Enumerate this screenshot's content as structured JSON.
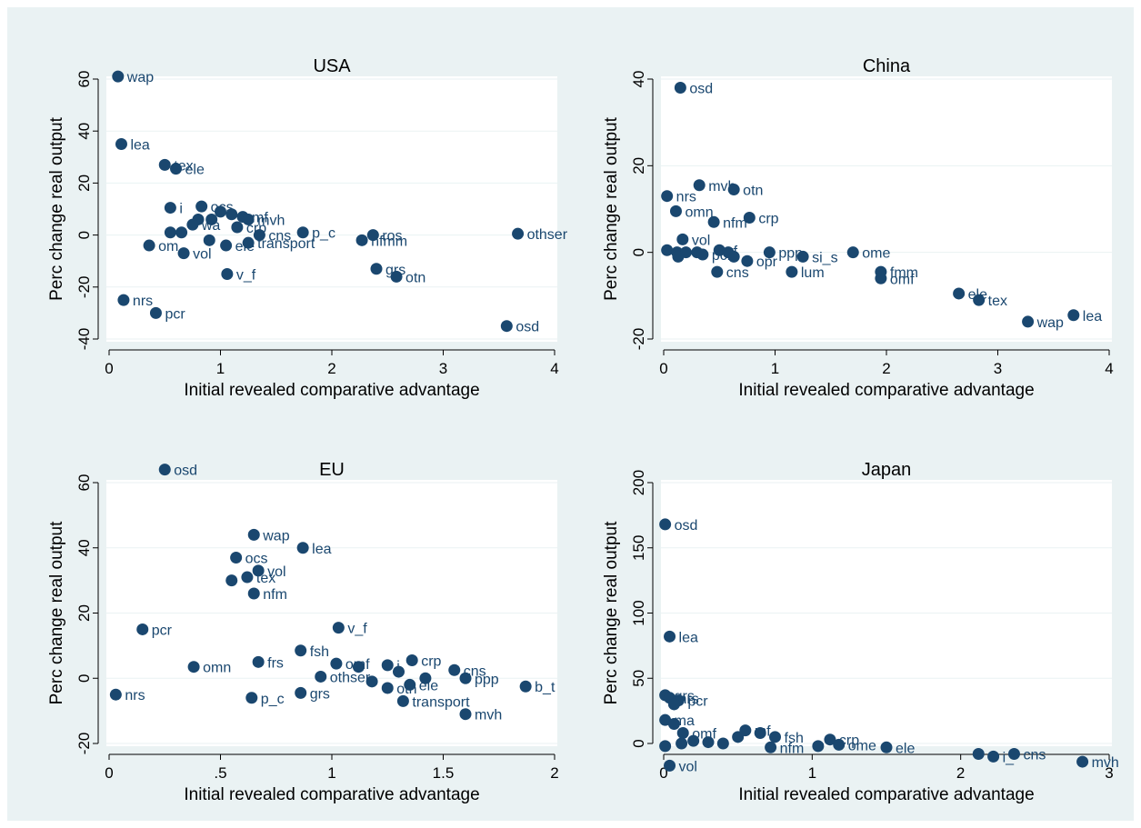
{
  "chart_data": [
    {
      "type": "scatter",
      "title": "USA",
      "xlabel": "Initial revealed comparative advantage",
      "ylabel": "Perc change real output",
      "xlim": [
        0,
        4
      ],
      "ylim": [
        -40,
        60
      ],
      "xticks": [
        "0",
        "1",
        "2",
        "3",
        "4"
      ],
      "yticks": [
        "-40",
        "-20",
        "0",
        "20",
        "40",
        "60"
      ],
      "points": [
        {
          "x": 0.08,
          "y": 61,
          "label": "wap"
        },
        {
          "x": 0.11,
          "y": 35,
          "label": "lea"
        },
        {
          "x": 0.5,
          "y": 27,
          "label": "tex"
        },
        {
          "x": 0.6,
          "y": 25.5,
          "label": "ele"
        },
        {
          "x": 0.55,
          "y": 10.5,
          "label": "i"
        },
        {
          "x": 0.83,
          "y": 11,
          "label": "ocs"
        },
        {
          "x": 1.0,
          "y": 9,
          "label": ""
        },
        {
          "x": 1.1,
          "y": 8,
          "label": ""
        },
        {
          "x": 1.2,
          "y": 7,
          "label": "mf"
        },
        {
          "x": 1.25,
          "y": 6,
          "label": "mvh"
        },
        {
          "x": 0.8,
          "y": 6,
          "label": ""
        },
        {
          "x": 0.92,
          "y": 6,
          "label": ""
        },
        {
          "x": 0.75,
          "y": 4,
          "label": "wa"
        },
        {
          "x": 1.15,
          "y": 3,
          "label": "crp"
        },
        {
          "x": 0.55,
          "y": 1,
          "label": ""
        },
        {
          "x": 0.65,
          "y": 1,
          "label": ""
        },
        {
          "x": 1.35,
          "y": 0,
          "label": "cns"
        },
        {
          "x": 1.74,
          "y": 1,
          "label": "p_c"
        },
        {
          "x": 2.37,
          "y": 0,
          "label": "ros"
        },
        {
          "x": 2.27,
          "y": -2,
          "label": "nfmm"
        },
        {
          "x": 3.67,
          "y": 0.5,
          "label": "othser"
        },
        {
          "x": 0.36,
          "y": -4,
          "label": "om"
        },
        {
          "x": 0.67,
          "y": -7,
          "label": "vol"
        },
        {
          "x": 0.9,
          "y": -2,
          "label": ""
        },
        {
          "x": 1.05,
          "y": -4,
          "label": "ele"
        },
        {
          "x": 1.25,
          "y": -3,
          "label": "transport"
        },
        {
          "x": 1.06,
          "y": -15,
          "label": "v_f"
        },
        {
          "x": 2.4,
          "y": -13,
          "label": "grs"
        },
        {
          "x": 2.58,
          "y": -16,
          "label": "otn"
        },
        {
          "x": 0.13,
          "y": -25,
          "label": "nrs"
        },
        {
          "x": 0.42,
          "y": -30,
          "label": "pcr"
        },
        {
          "x": 3.57,
          "y": -35,
          "label": "osd"
        }
      ]
    },
    {
      "type": "scatter",
      "title": "China",
      "xlabel": "Initial revealed comparative advantage",
      "ylabel": "Perc change real output",
      "xlim": [
        0,
        4
      ],
      "ylim": [
        -20,
        40
      ],
      "xticks": [
        "0",
        "1",
        "2",
        "3",
        "4"
      ],
      "yticks": [
        "-20",
        "0",
        "20",
        "40"
      ],
      "points": [
        {
          "x": 0.15,
          "y": 38,
          "label": "osd"
        },
        {
          "x": 0.32,
          "y": 15.5,
          "label": "mvh"
        },
        {
          "x": 0.63,
          "y": 14.5,
          "label": "otn"
        },
        {
          "x": 0.03,
          "y": 13,
          "label": "nrs"
        },
        {
          "x": 0.11,
          "y": 9.5,
          "label": "omn"
        },
        {
          "x": 0.45,
          "y": 7,
          "label": "nfm"
        },
        {
          "x": 0.77,
          "y": 8,
          "label": "crp"
        },
        {
          "x": 0.17,
          "y": 3,
          "label": "vol"
        },
        {
          "x": 0.03,
          "y": 0.5,
          "label": ""
        },
        {
          "x": 0.12,
          "y": 0,
          "label": ""
        },
        {
          "x": 0.2,
          "y": 0,
          "label": ""
        },
        {
          "x": 0.3,
          "y": 0,
          "label": ""
        },
        {
          "x": 0.35,
          "y": -0.5,
          "label": "pcr"
        },
        {
          "x": 0.5,
          "y": 0.5,
          "label": "rf"
        },
        {
          "x": 0.58,
          "y": 0,
          "label": ""
        },
        {
          "x": 0.63,
          "y": -1,
          "label": ""
        },
        {
          "x": 0.75,
          "y": -2,
          "label": "opr"
        },
        {
          "x": 0.95,
          "y": 0,
          "label": "ppp"
        },
        {
          "x": 0.13,
          "y": -1,
          "label": ""
        },
        {
          "x": 0.48,
          "y": -4.5,
          "label": "cns"
        },
        {
          "x": 1.15,
          "y": -4.5,
          "label": "lum"
        },
        {
          "x": 1.25,
          "y": -1,
          "label": "si_s"
        },
        {
          "x": 1.7,
          "y": 0,
          "label": "ome"
        },
        {
          "x": 1.95,
          "y": -4.5,
          "label": "fmm"
        },
        {
          "x": 1.95,
          "y": -6,
          "label": "omf"
        },
        {
          "x": 2.65,
          "y": -9.5,
          "label": "ele"
        },
        {
          "x": 2.83,
          "y": -11,
          "label": "tex"
        },
        {
          "x": 3.27,
          "y": -16,
          "label": "wap"
        },
        {
          "x": 3.68,
          "y": -14.5,
          "label": "lea"
        }
      ]
    },
    {
      "type": "scatter",
      "title": "EU",
      "xlabel": "Initial revealed comparative advantage",
      "ylabel": "Perc change real output",
      "xlim": [
        0,
        2
      ],
      "ylim": [
        -20,
        60
      ],
      "xticks": [
        "0",
        ".5",
        "1",
        "1.5",
        "2"
      ],
      "yticks": [
        "-20",
        "0",
        "20",
        "40",
        "60"
      ],
      "points": [
        {
          "x": 0.25,
          "y": 64,
          "label": "osd"
        },
        {
          "x": 0.65,
          "y": 44,
          "label": "wap"
        },
        {
          "x": 0.87,
          "y": 40,
          "label": "lea"
        },
        {
          "x": 0.57,
          "y": 37,
          "label": "ocs"
        },
        {
          "x": 0.67,
          "y": 33,
          "label": "vol"
        },
        {
          "x": 0.62,
          "y": 31,
          "label": "tex"
        },
        {
          "x": 0.55,
          "y": 30,
          "label": ""
        },
        {
          "x": 0.65,
          "y": 26,
          "label": "nfm"
        },
        {
          "x": 0.15,
          "y": 15,
          "label": "pcr"
        },
        {
          "x": 1.03,
          "y": 15.5,
          "label": "v_f"
        },
        {
          "x": 0.86,
          "y": 8.5,
          "label": "fsh"
        },
        {
          "x": 0.67,
          "y": 5,
          "label": "frs"
        },
        {
          "x": 0.38,
          "y": 3.5,
          "label": "omn"
        },
        {
          "x": 1.02,
          "y": 4.5,
          "label": "omf"
        },
        {
          "x": 0.95,
          "y": 0.5,
          "label": "othser"
        },
        {
          "x": 1.12,
          "y": 3.5,
          "label": ""
        },
        {
          "x": 1.18,
          "y": -1,
          "label": ""
        },
        {
          "x": 1.25,
          "y": 4,
          "label": "i"
        },
        {
          "x": 1.3,
          "y": 2,
          "label": ""
        },
        {
          "x": 1.36,
          "y": 5.5,
          "label": "crp"
        },
        {
          "x": 1.42,
          "y": 0,
          "label": ""
        },
        {
          "x": 1.55,
          "y": 2.5,
          "label": "cns"
        },
        {
          "x": 1.6,
          "y": 0,
          "label": "ppp"
        },
        {
          "x": 1.25,
          "y": -3,
          "label": "otn"
        },
        {
          "x": 1.35,
          "y": -2,
          "label": "ele"
        },
        {
          "x": 1.32,
          "y": -7,
          "label": "transport"
        },
        {
          "x": 1.6,
          "y": -11,
          "label": "mvh"
        },
        {
          "x": 1.87,
          "y": -2.5,
          "label": "b_t"
        },
        {
          "x": 0.03,
          "y": -5,
          "label": "nrs"
        },
        {
          "x": 0.64,
          "y": -6,
          "label": "p_c"
        },
        {
          "x": 0.86,
          "y": -4.5,
          "label": "grs"
        }
      ]
    },
    {
      "type": "scatter",
      "title": "Japan",
      "xlabel": "Initial revealed comparative advantage",
      "ylabel": "Perc change real output",
      "xlim": [
        0,
        3
      ],
      "ylim": [
        0,
        200
      ],
      "xticks": [
        "0",
        "1",
        "2",
        "3"
      ],
      "yticks": [
        "0",
        "50",
        "100",
        "150",
        "200"
      ],
      "points": [
        {
          "x": 0.01,
          "y": 168,
          "label": "osd"
        },
        {
          "x": 0.04,
          "y": 82,
          "label": "lea"
        },
        {
          "x": 0.01,
          "y": 37,
          "label": "grs"
        },
        {
          "x": 0.04,
          "y": 35,
          "label": "nrs"
        },
        {
          "x": 0.1,
          "y": 33,
          "label": "pcr"
        },
        {
          "x": 0.07,
          "y": 30,
          "label": ""
        },
        {
          "x": 0.01,
          "y": 18,
          "label": "ma"
        },
        {
          "x": 0.07,
          "y": 15,
          "label": ""
        },
        {
          "x": 0.13,
          "y": 8,
          "label": "omf"
        },
        {
          "x": 0.12,
          "y": 0,
          "label": ""
        },
        {
          "x": 0.2,
          "y": 2,
          "label": ""
        },
        {
          "x": 0.3,
          "y": 1,
          "label": ""
        },
        {
          "x": 0.4,
          "y": 0,
          "label": ""
        },
        {
          "x": 0.5,
          "y": 5,
          "label": ""
        },
        {
          "x": 0.55,
          "y": 10,
          "label": "mf"
        },
        {
          "x": 0.65,
          "y": 8,
          "label": ""
        },
        {
          "x": 0.75,
          "y": 5,
          "label": "fsh"
        },
        {
          "x": 0.72,
          "y": -3,
          "label": "nfm"
        },
        {
          "x": 1.04,
          "y": -2,
          "label": ""
        },
        {
          "x": 1.12,
          "y": 3,
          "label": "crp"
        },
        {
          "x": 1.18,
          "y": -1,
          "label": "ome"
        },
        {
          "x": 1.5,
          "y": -3,
          "label": "ele"
        },
        {
          "x": 2.12,
          "y": -8,
          "label": ""
        },
        {
          "x": 2.22,
          "y": -10,
          "label": "i_"
        },
        {
          "x": 2.36,
          "y": -8,
          "label": "cns"
        },
        {
          "x": 2.82,
          "y": -14,
          "label": "mvh"
        },
        {
          "x": 0.04,
          "y": -17,
          "label": "vol"
        },
        {
          "x": 0.01,
          "y": -2,
          "label": ""
        }
      ]
    }
  ],
  "colors": {
    "background": "#eaf2f3",
    "plot_area": "#ffffff",
    "gridline": "#eaf2f3",
    "marker": "#1a476f",
    "text": "#000000",
    "label": "#1a476f"
  }
}
